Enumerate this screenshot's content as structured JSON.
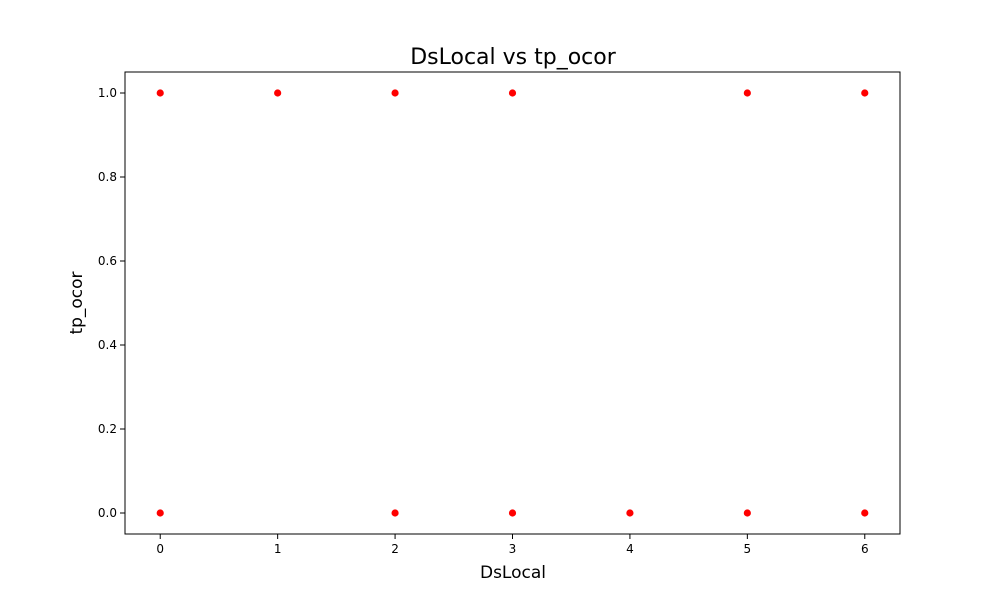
{
  "chart_data": {
    "type": "scatter",
    "title": "DsLocal vs tp_ocor",
    "xlabel": "DsLocal",
    "ylabel": "tp_ocor",
    "xlim": [
      -0.3,
      6.3
    ],
    "ylim": [
      -0.05,
      1.05
    ],
    "xticks": [
      0,
      1,
      2,
      3,
      4,
      5,
      6
    ],
    "xtick_labels": [
      "0",
      "1",
      "2",
      "3",
      "4",
      "5",
      "6"
    ],
    "yticks": [
      0.0,
      0.2,
      0.4,
      0.6,
      0.8,
      1.0
    ],
    "ytick_labels": [
      "0.0",
      "0.2",
      "0.4",
      "0.6",
      "0.8",
      "1.0"
    ],
    "grid": false,
    "marker_color": "#ff0000",
    "points": [
      {
        "x": 0,
        "y": 1.0
      },
      {
        "x": 1,
        "y": 1.0
      },
      {
        "x": 2,
        "y": 1.0
      },
      {
        "x": 3,
        "y": 1.0
      },
      {
        "x": 5,
        "y": 1.0
      },
      {
        "x": 6,
        "y": 1.0
      },
      {
        "x": 0,
        "y": 0.0
      },
      {
        "x": 2,
        "y": 0.0
      },
      {
        "x": 3,
        "y": 0.0
      },
      {
        "x": 4,
        "y": 0.0
      },
      {
        "x": 5,
        "y": 0.0
      },
      {
        "x": 6,
        "y": 0.0
      }
    ]
  }
}
